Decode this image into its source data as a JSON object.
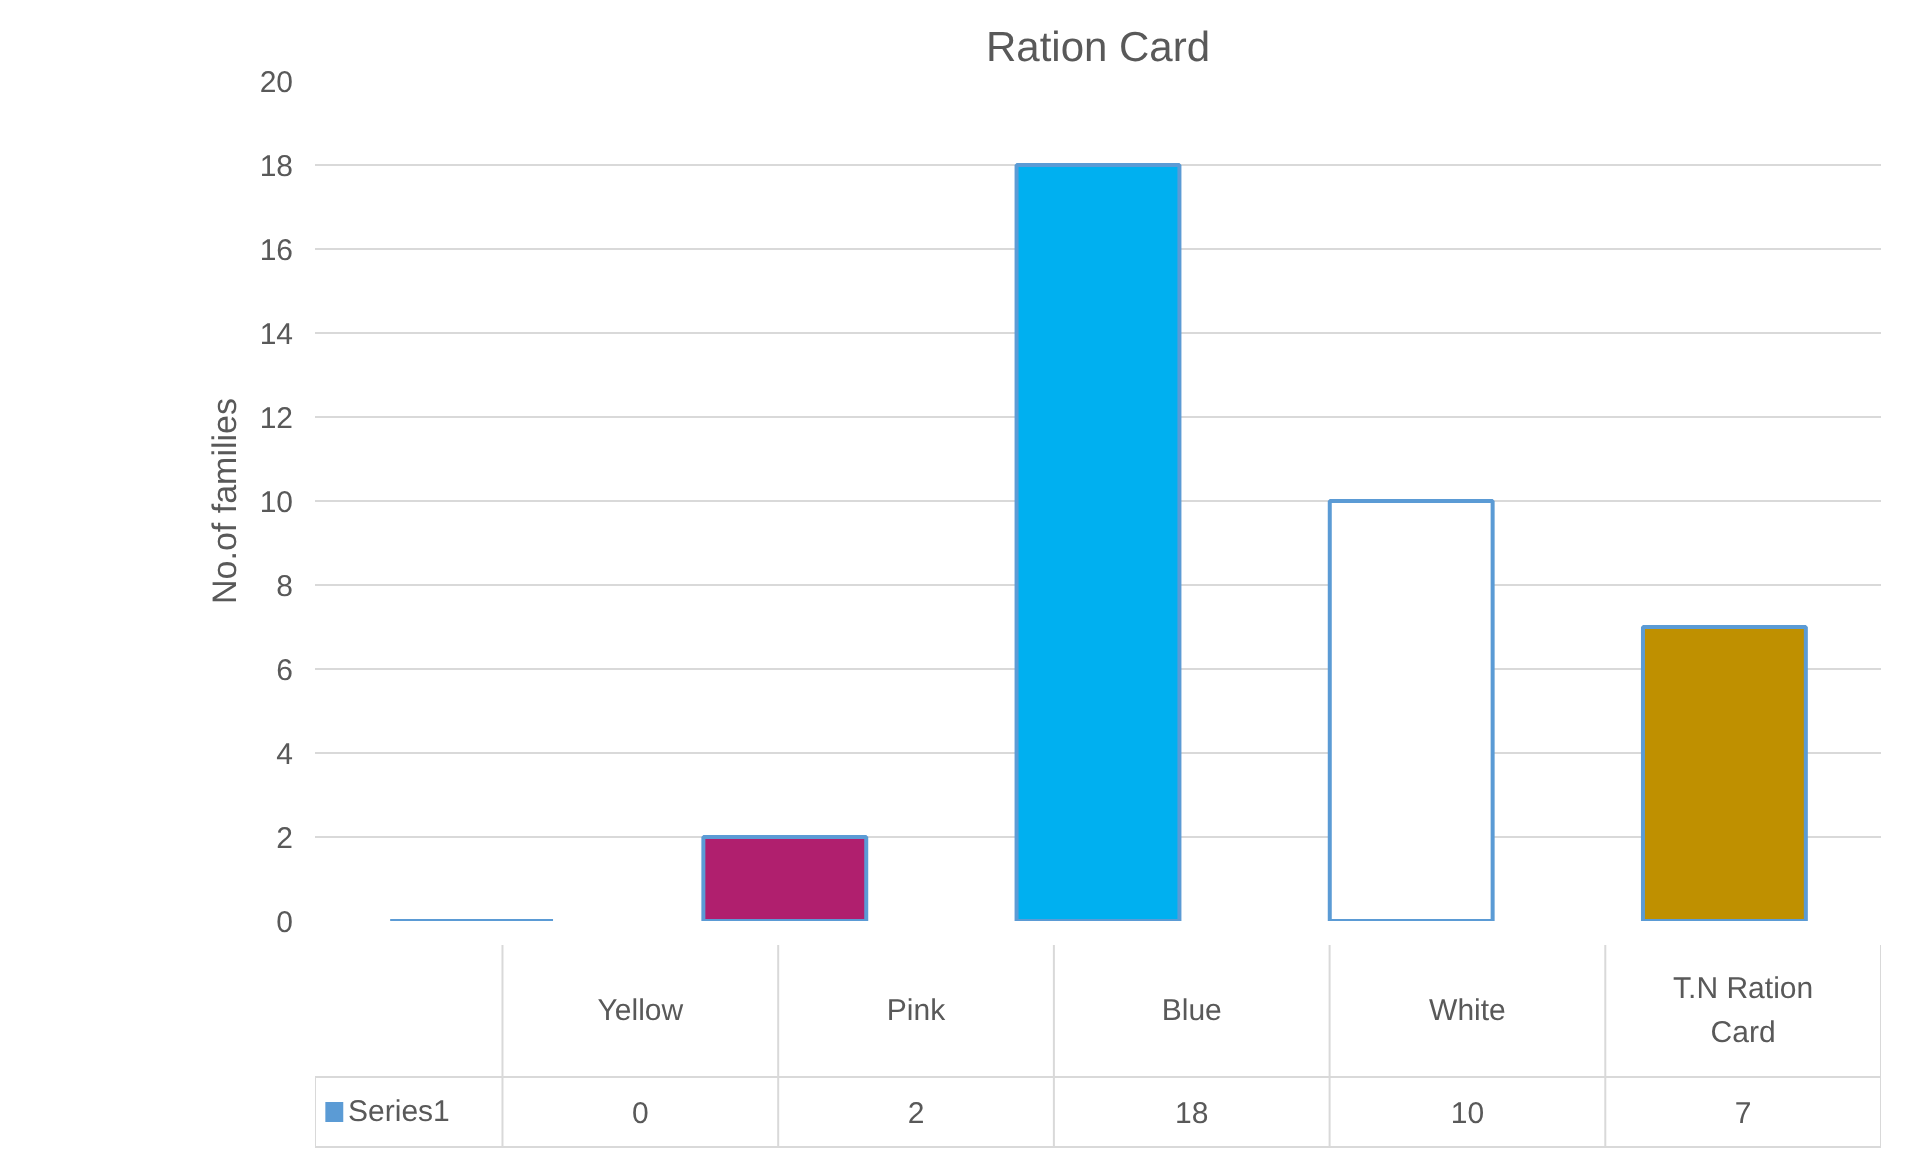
{
  "chart_data": {
    "type": "bar",
    "title": "Ration Card",
    "ylabel": "No.of families",
    "categories": [
      "Yellow",
      "Pink",
      "Blue",
      "White",
      "T.N Ration Card"
    ],
    "series": [
      {
        "name": "Series1",
        "color": "#5b9bd5",
        "values": [
          0,
          2,
          18,
          10,
          7
        ],
        "colors": [
          "#5b9bd5",
          "#b01f6e",
          "#00b0f0",
          "#ffffff",
          "#bf9000"
        ]
      }
    ],
    "ylim": [
      0,
      20
    ],
    "yticks": [
      0,
      2,
      4,
      6,
      8,
      10,
      12,
      14,
      16,
      18,
      20
    ],
    "grid": "y",
    "data_labels": true
  }
}
